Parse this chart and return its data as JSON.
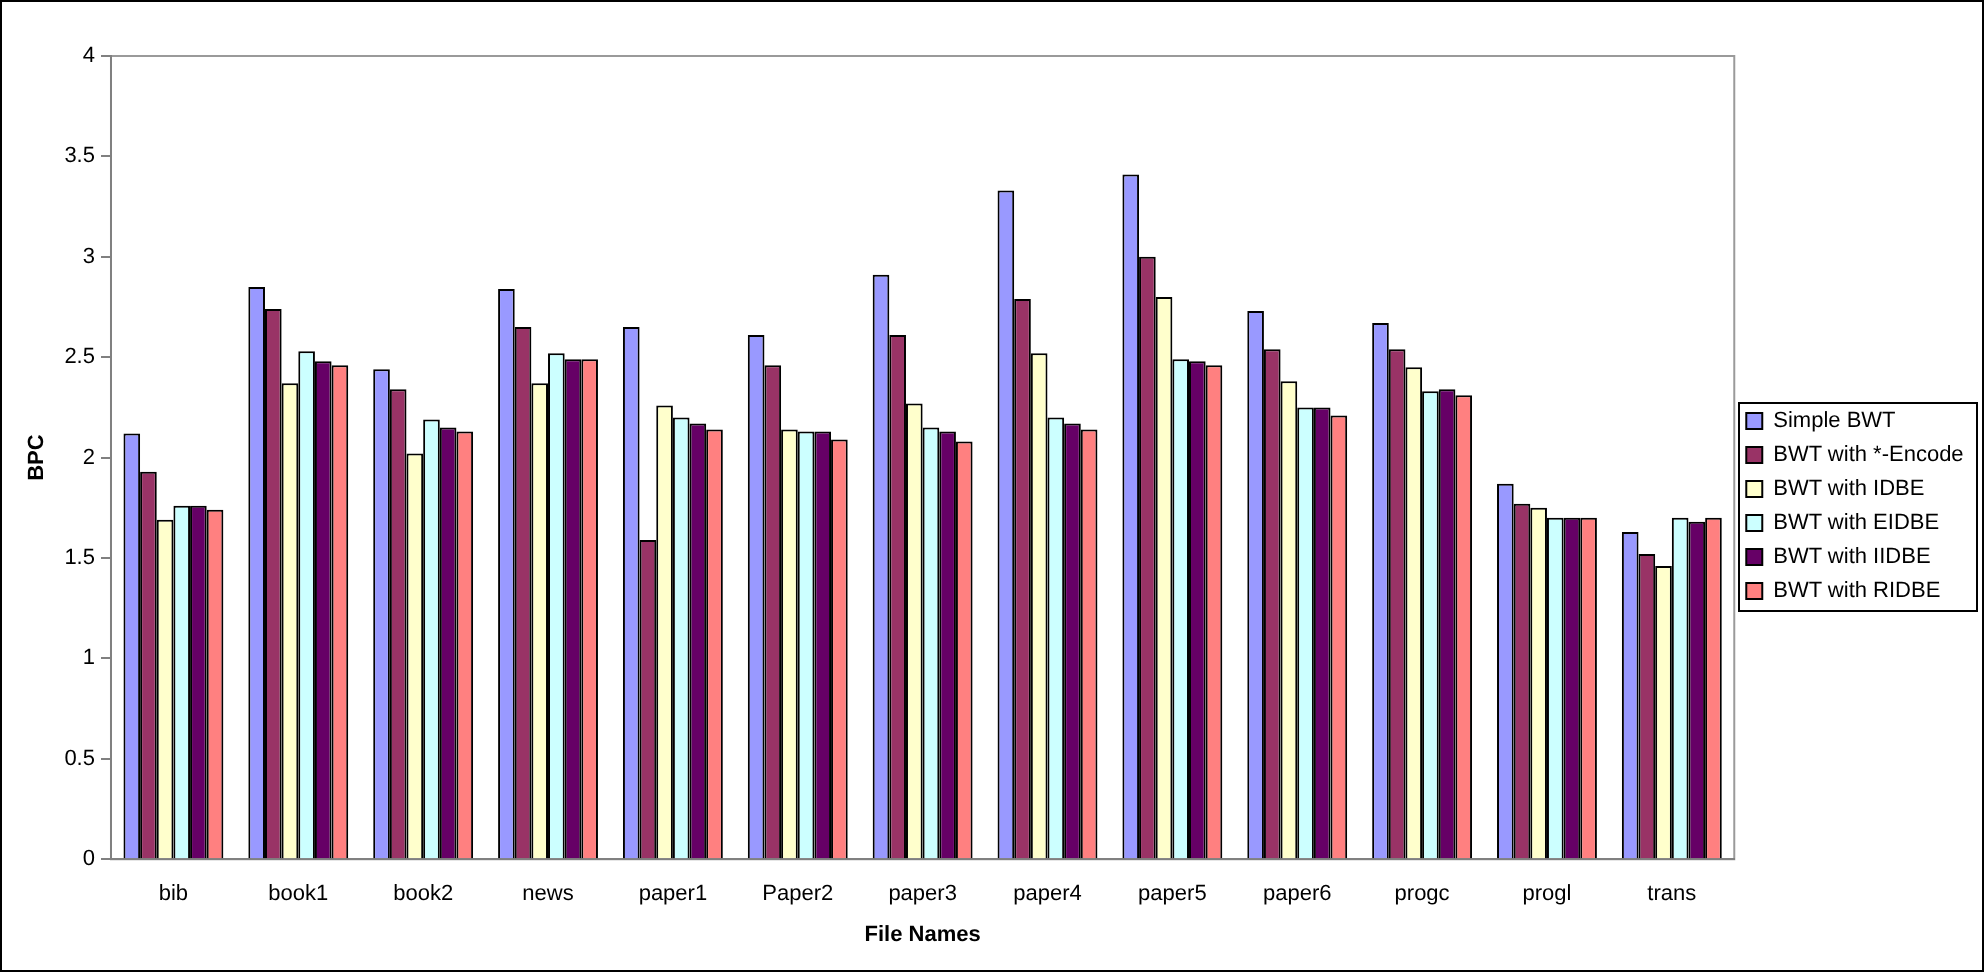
{
  "chart_data": {
    "type": "bar",
    "xlabel": "File Names",
    "ylabel": "BPC",
    "categories": [
      "bib",
      "book1",
      "book2",
      "news",
      "paper1",
      "Paper2",
      "paper3",
      "paper4",
      "paper5",
      "paper6",
      "progc",
      "progl",
      "trans"
    ],
    "series": [
      {
        "name": "Simple BWT",
        "color": "#9999ff",
        "values": [
          2.12,
          2.85,
          2.44,
          2.84,
          2.65,
          2.61,
          2.91,
          3.33,
          3.41,
          2.73,
          2.67,
          1.87,
          1.63
        ]
      },
      {
        "name": "BWT with *-Encode",
        "color": "#993366",
        "values": [
          1.93,
          2.74,
          2.34,
          2.65,
          1.59,
          2.46,
          2.61,
          2.79,
          3.0,
          2.54,
          2.54,
          1.77,
          1.52
        ]
      },
      {
        "name": "BWT with IDBE",
        "color": "#ffffcc",
        "values": [
          1.69,
          2.37,
          2.02,
          2.37,
          2.26,
          2.14,
          2.27,
          2.52,
          2.8,
          2.38,
          2.45,
          1.75,
          1.46
        ]
      },
      {
        "name": "BWT with EIDBE",
        "color": "#ccffff",
        "values": [
          1.76,
          2.53,
          2.19,
          2.52,
          2.2,
          2.13,
          2.15,
          2.2,
          2.49,
          2.25,
          2.33,
          1.7,
          1.7
        ]
      },
      {
        "name": "BWT with IIDBE",
        "color": "#660066",
        "values": [
          1.76,
          2.48,
          2.15,
          2.49,
          2.17,
          2.13,
          2.13,
          2.17,
          2.48,
          2.25,
          2.34,
          1.7,
          1.68
        ]
      },
      {
        "name": "BWT with RIDBE",
        "color": "#ff8080",
        "values": [
          1.74,
          2.46,
          2.13,
          2.49,
          2.14,
          2.09,
          2.08,
          2.14,
          2.46,
          2.21,
          2.31,
          1.7,
          1.7
        ]
      }
    ],
    "ylim": [
      0,
      4
    ],
    "yticks": [
      0,
      0.5,
      1,
      1.5,
      2,
      2.5,
      3,
      3.5,
      4
    ],
    "grid": false,
    "legend": "right"
  }
}
